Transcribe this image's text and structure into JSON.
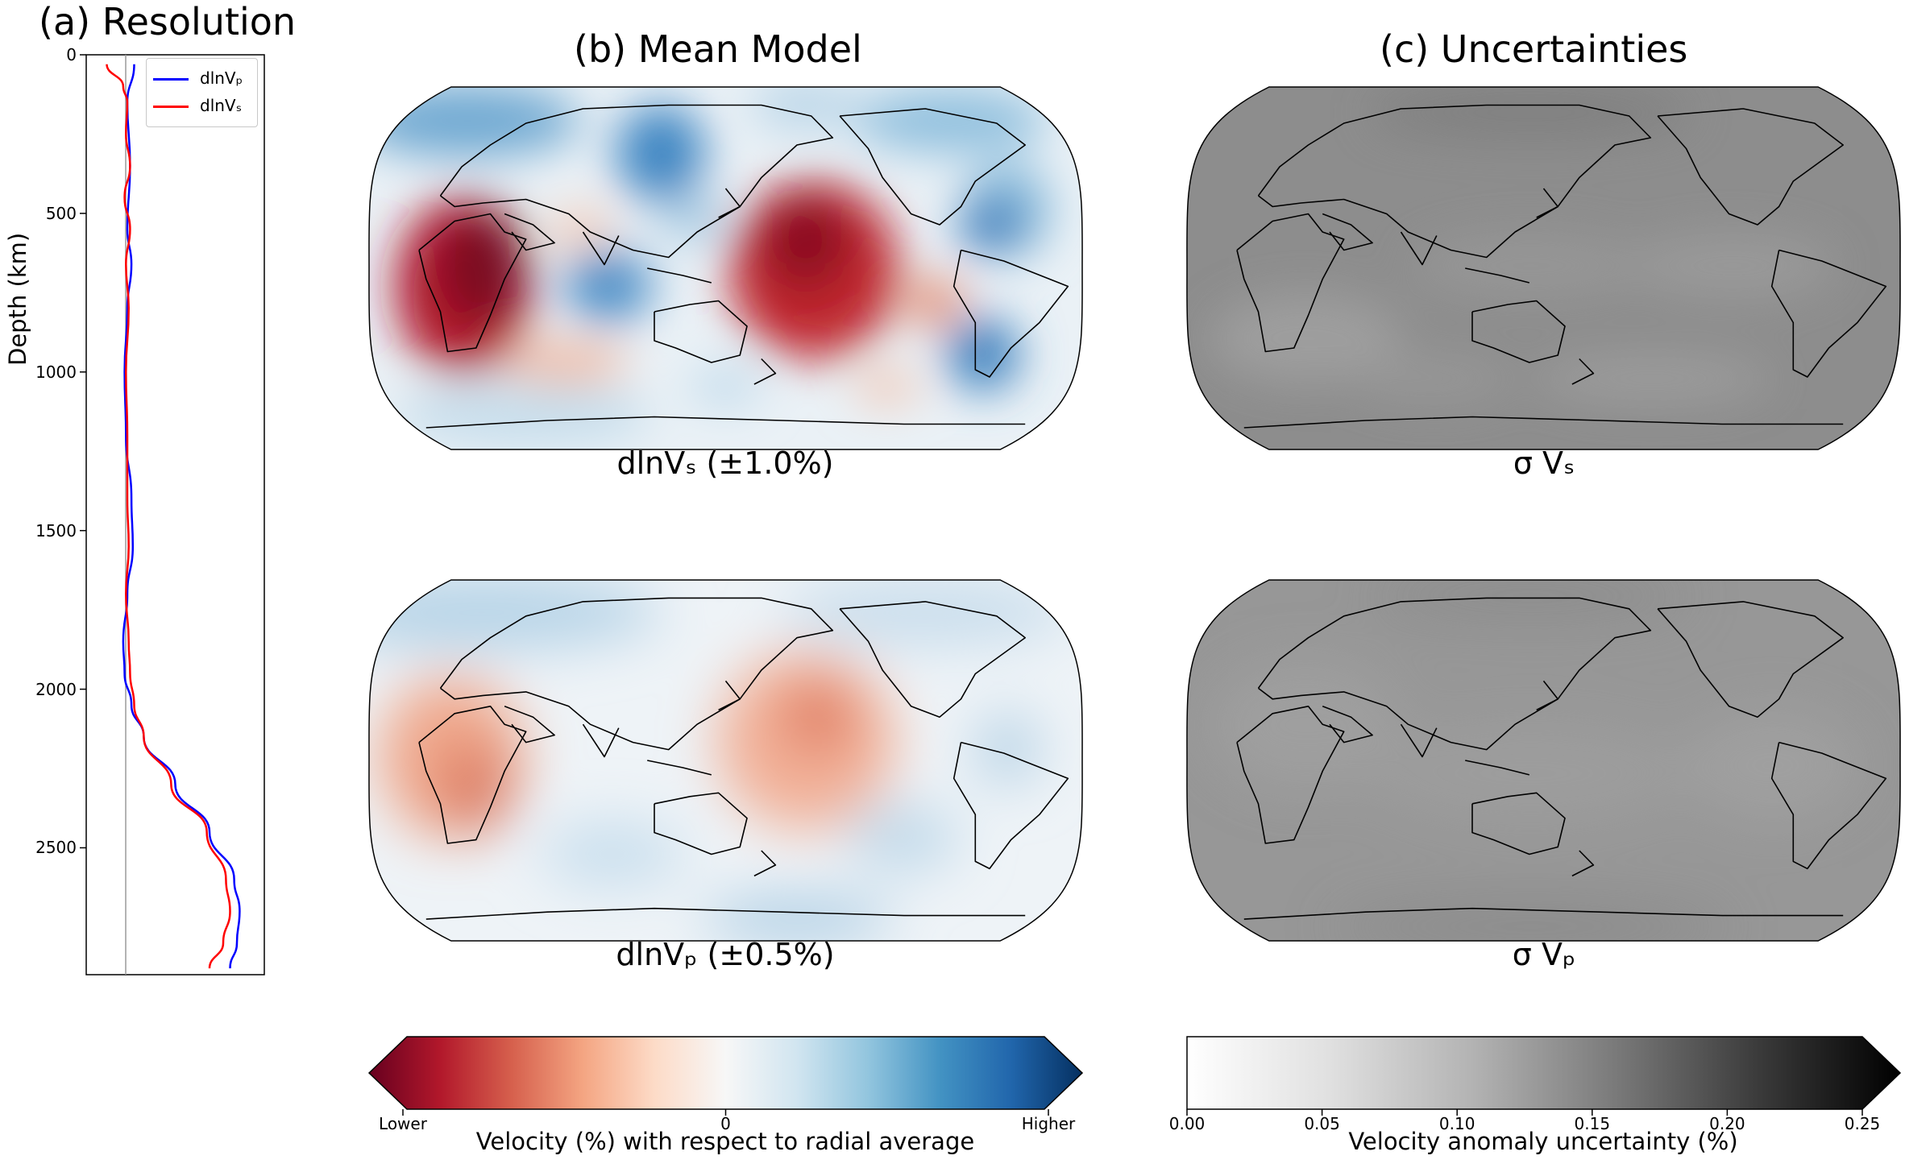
{
  "panels": {
    "a_title": "(a) Resolution",
    "b_title": "(b) Mean Model",
    "c_title": "(c) Uncertainties"
  },
  "resolution_plot": {
    "ylabel": "Depth (km)",
    "legend": [
      {
        "label": "dlnVₚ",
        "color": "#0000ff"
      },
      {
        "label": "dlnVₛ",
        "color": "#ff0000"
      }
    ]
  },
  "chart_data": [
    {
      "type": "line",
      "title": "(a) Resolution",
      "ylabel": "Depth (km)",
      "ylim": [
        2900,
        0
      ],
      "yticks": [
        "0",
        "500",
        "1000",
        "1500",
        "2000",
        "2500"
      ],
      "legend_position": "top-right",
      "reference_line_x": 0,
      "series": [
        {
          "name": "dlnVₚ",
          "color": "#0000ff",
          "depth": [
            30,
            150,
            350,
            550,
            660,
            800,
            1000,
            1200,
            1400,
            1550,
            1700,
            1850,
            1950,
            2050,
            2150,
            2300,
            2450,
            2600,
            2700,
            2800,
            2880
          ],
          "value": [
            0.05,
            0.0,
            0.02,
            0.0,
            0.03,
            0.0,
            -0.02,
            -0.01,
            0.03,
            0.04,
            0.0,
            -0.03,
            -0.02,
            0.03,
            0.12,
            0.35,
            0.6,
            0.78,
            0.82,
            0.8,
            0.75
          ]
        },
        {
          "name": "dlnVₛ",
          "color": "#ff0000",
          "depth": [
            30,
            100,
            150,
            250,
            350,
            450,
            550,
            660,
            800,
            1000,
            1200,
            1400,
            1550,
            1700,
            1850,
            1950,
            2050,
            2150,
            2300,
            2450,
            2600,
            2700,
            2800,
            2880
          ],
          "value": [
            -0.15,
            -0.03,
            0.0,
            -0.01,
            0.02,
            -0.02,
            0.02,
            -0.01,
            0.01,
            -0.01,
            0.0,
            0.0,
            0.01,
            -0.01,
            0.01,
            0.02,
            0.05,
            0.12,
            0.32,
            0.58,
            0.72,
            0.75,
            0.7,
            0.6
          ]
        }
      ]
    },
    {
      "type": "heatmap",
      "title": "(b) Mean Model",
      "maps": [
        {
          "caption": "dlnVₛ (±1.0%)"
        },
        {
          "caption": "dlnVₚ (±0.5%)"
        }
      ],
      "colorbar": {
        "label": "Velocity (%) with respect to radial average",
        "ticks": [
          "Lower",
          "0",
          "Higher"
        ],
        "colormap": "RdBu",
        "colors": [
          "#67001f",
          "#b2182b",
          "#d6604d",
          "#f4a582",
          "#fddbc7",
          "#f7f7f7",
          "#d1e5f0",
          "#92c5de",
          "#4393c3",
          "#2166ac",
          "#053061"
        ]
      }
    },
    {
      "type": "heatmap",
      "title": "(c) Uncertainties",
      "maps": [
        {
          "caption": "σ Vₛ"
        },
        {
          "caption": "σ Vₚ"
        }
      ],
      "colorbar": {
        "label": "Velocity anomaly uncertainty (%)",
        "ticks": [
          "0.00",
          "0.05",
          "0.10",
          "0.15",
          "0.20",
          "0.25"
        ],
        "range": [
          0.0,
          0.25
        ],
        "colormap": "Greys"
      }
    }
  ]
}
